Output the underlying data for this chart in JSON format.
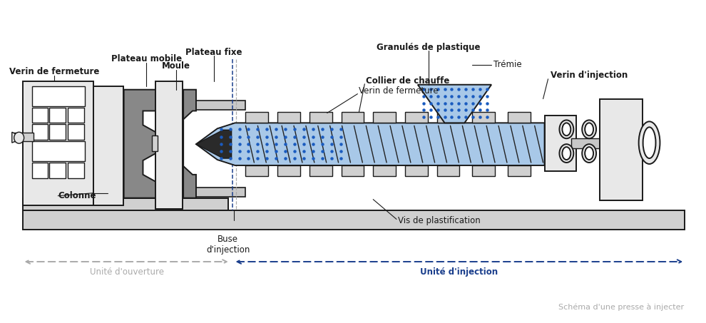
{
  "labels": {
    "plateau_mobile": "Plateau mobile",
    "plateau_fixe": "Plateau fixe",
    "moule": "Moule",
    "verin_fermeture_left": "Verin de fermeture",
    "verin_fermeture_right": "Verin de fermeture",
    "colonne": "Colonne",
    "buse": "Buse\nd'injection",
    "granules": "Granulés de plastique",
    "tremie": "Trémie",
    "collier": "Collier de chauffe",
    "verin_injection": "Verin d'injection",
    "vis": "Vis de plastification",
    "unite_ouverture": "Unité d'ouverture",
    "unite_injection": "Unité d'injection",
    "schema": "Schéma d'une presse à injecter"
  },
  "colors": {
    "black": "#1a1a1a",
    "gray": "#888888",
    "mid_gray": "#aaaaaa",
    "light_gray": "#d0d0d0",
    "dark_gray": "#666666",
    "blue": "#1a3e8c",
    "light_blue": "#a8c8e8",
    "dot_blue": "#1a5bbf",
    "white": "#ffffff",
    "fill_light": "#e8e8e8",
    "fill_mid": "#c8c8c8",
    "fill_dark": "#888888"
  }
}
